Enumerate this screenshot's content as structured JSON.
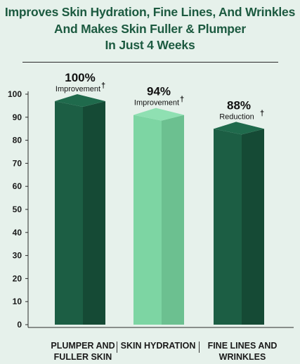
{
  "title_lines": [
    "Improves Skin Hydration, Fine Lines, And Wrinkles",
    "And Makes Skin Fuller & Plumper",
    "In Just 4 Weeks"
  ],
  "colors": {
    "dark_green_front": "#1c5e44",
    "dark_green_side": "#154a35",
    "dark_green_top": "#1f6a4c",
    "light_green_front": "#7dd5a3",
    "light_green_side": "#6cc090",
    "light_green_top": "#8fe0b2",
    "title": "#1c5a40",
    "background": "#e6f1eb"
  },
  "chart_data": {
    "type": "bar",
    "categories": [
      "PLUMPER AND FULLER SKIN",
      "SKIN HYDRATION",
      "FINE LINES AND WRINKLES"
    ],
    "category_lines": [
      [
        "PLUMPER AND",
        "FULLER SKIN"
      ],
      [
        "SKIN HYDRATION"
      ],
      [
        "FINE LINES AND",
        "WRINKLES"
      ]
    ],
    "values": [
      100,
      94,
      88
    ],
    "value_labels": [
      "100%",
      "94%",
      "88%"
    ],
    "value_sublabels": [
      "Improvement",
      "Improvement",
      "Reduction"
    ],
    "dagger": "†",
    "bar_colors": [
      "dark",
      "light",
      "dark"
    ],
    "ylim": [
      0,
      100
    ],
    "yticks": [
      0,
      10,
      20,
      30,
      40,
      50,
      60,
      70,
      80,
      90,
      100
    ],
    "style": "3d"
  }
}
